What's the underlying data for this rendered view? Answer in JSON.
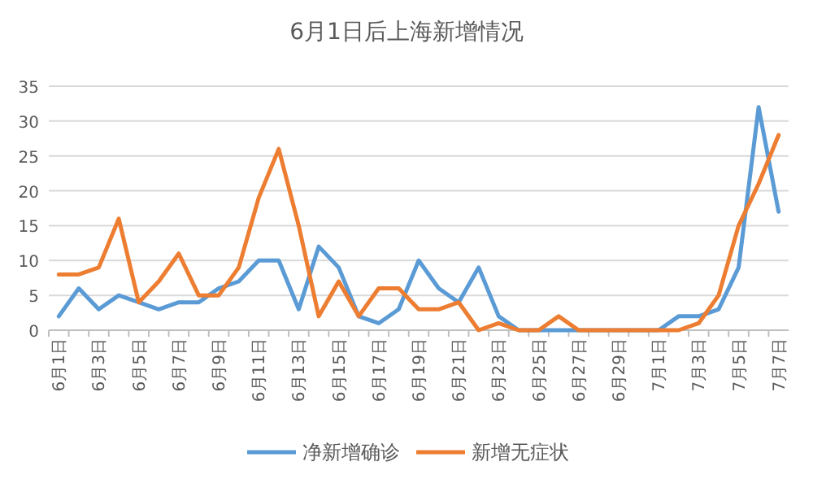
{
  "chart_data": {
    "type": "line",
    "title": "6月1日后上海新增情况",
    "categories": [
      "6月1日",
      null,
      "6月3日",
      null,
      "6月5日",
      null,
      "6月7日",
      null,
      "6月9日",
      null,
      "6月11日",
      null,
      "6月13日",
      null,
      "6月15日",
      null,
      "6月17日",
      null,
      "6月19日",
      null,
      "6月21日",
      null,
      "6月23日",
      null,
      "6月25日",
      null,
      "6月27日",
      null,
      "6月29日",
      null,
      "7月1日",
      null,
      "7月3日",
      null,
      "7月5日",
      null,
      "7月7日"
    ],
    "series": [
      {
        "name": "净新增确诊",
        "color": "#5b9bd5",
        "values": [
          2,
          6,
          3,
          5,
          4,
          3,
          4,
          4,
          6,
          7,
          10,
          10,
          3,
          12,
          9,
          2,
          1,
          3,
          10,
          6,
          4,
          9,
          2,
          0,
          0,
          0,
          0,
          0,
          0,
          0,
          0,
          2,
          2,
          3,
          9,
          32,
          17
        ]
      },
      {
        "name": "新增无症状",
        "color": "#ed7d31",
        "values": [
          8,
          8,
          9,
          16,
          4,
          7,
          11,
          5,
          5,
          9,
          19,
          26,
          15,
          2,
          7,
          2,
          6,
          6,
          3,
          3,
          4,
          0,
          1,
          0,
          0,
          2,
          0,
          0,
          0,
          0,
          0,
          0,
          1,
          5,
          15,
          21,
          28
        ]
      }
    ],
    "ylim": [
      0,
      35
    ],
    "yticks": [
      0,
      5,
      10,
      15,
      20,
      25,
      30,
      35
    ],
    "grid": "y",
    "legend": "bottom",
    "marker": "none",
    "line_style": "solid"
  }
}
